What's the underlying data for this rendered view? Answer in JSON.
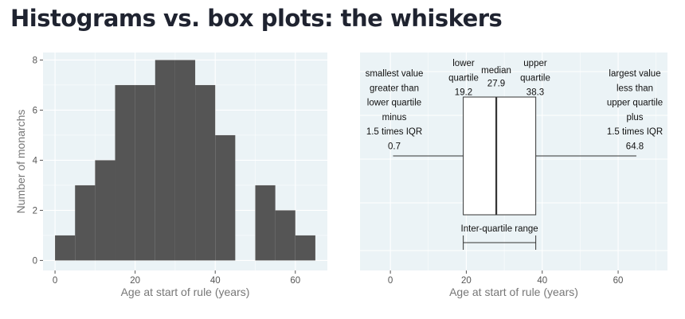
{
  "title": "Histograms vs. box plots: the whiskers",
  "chart_data": [
    {
      "type": "bar",
      "subtype": "histogram",
      "bin_edges": [
        0,
        5,
        10,
        15,
        20,
        25,
        30,
        35,
        40,
        45,
        50,
        55,
        60,
        65
      ],
      "values": [
        1,
        3,
        4,
        7,
        7,
        8,
        8,
        7,
        5,
        0,
        3,
        2,
        1
      ],
      "xlabel": "Age at start of rule (years)",
      "ylabel": "Number of monarchs",
      "xlim": [
        -3,
        68
      ],
      "ylim": [
        -0.4,
        8.3
      ],
      "xticks": [
        0,
        20,
        40,
        60
      ],
      "yticks": [
        0,
        2,
        4,
        6,
        8
      ],
      "grid": true,
      "bar_color": "#555555"
    },
    {
      "type": "box",
      "min": 0.7,
      "q1": 19.2,
      "median": 27.9,
      "q3": 38.3,
      "max": 64.8,
      "xlabel": "Age at start of rule (years)",
      "xlim": [
        -8,
        73
      ],
      "xticks": [
        0,
        20,
        40,
        60
      ],
      "grid": true,
      "annotations": {
        "min_text": [
          "smallest value",
          "greater than",
          "lower quartile",
          "minus",
          "1.5 times IQR",
          "0.7"
        ],
        "q1_text": [
          "lower",
          "quartile",
          "19.2"
        ],
        "median_text": [
          "median",
          "27.9"
        ],
        "q3_text": [
          "upper",
          "quartile",
          "38.3"
        ],
        "max_text": [
          "largest value",
          "less than",
          "upper quartile",
          "plus",
          "1.5 times IQR",
          "64.8"
        ],
        "iqr_text": "Inter-quartile range"
      }
    }
  ]
}
